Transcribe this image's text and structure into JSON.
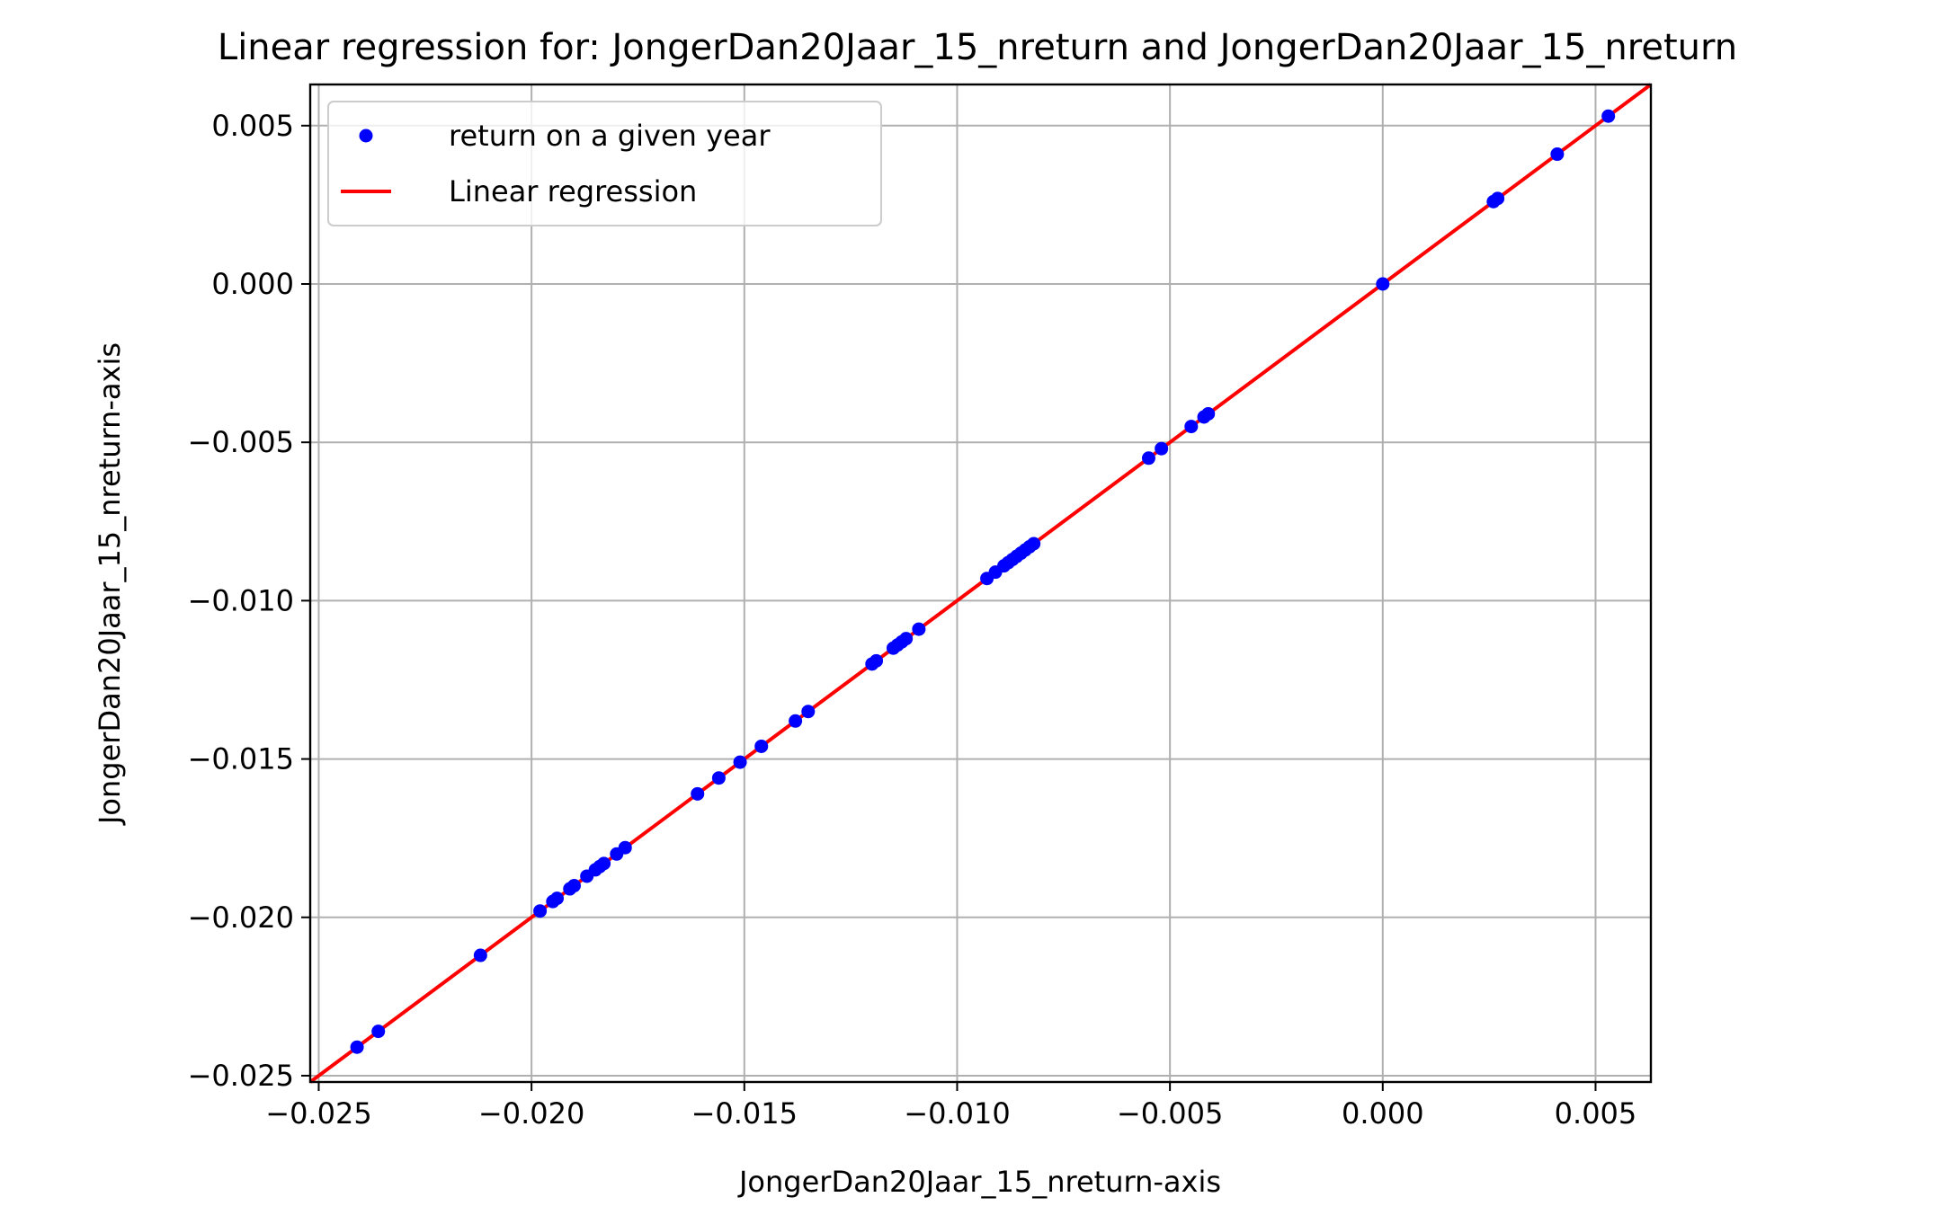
{
  "chart_data": {
    "type": "scatter",
    "title": "Linear regression for: JongerDan20Jaar_15_nreturn and JongerDan20Jaar_15_nreturn",
    "xlabel": "JongerDan20Jaar_15_nreturn-axis",
    "ylabel": "JongerDan20Jaar_15_nreturn-axis",
    "xlim": [
      -0.0252,
      0.0063
    ],
    "ylim": [
      -0.0252,
      0.0063
    ],
    "grid": true,
    "legend_position": "upper-left",
    "x_ticks": [
      {
        "value": -0.025,
        "label": "−0.025"
      },
      {
        "value": -0.02,
        "label": "−0.020"
      },
      {
        "value": -0.015,
        "label": "−0.015"
      },
      {
        "value": -0.01,
        "label": "−0.010"
      },
      {
        "value": -0.005,
        "label": "−0.005"
      },
      {
        "value": 0.0,
        "label": "0.000"
      },
      {
        "value": 0.005,
        "label": "0.005"
      }
    ],
    "y_ticks": [
      {
        "value": -0.025,
        "label": "−0.025"
      },
      {
        "value": -0.02,
        "label": "−0.020"
      },
      {
        "value": -0.015,
        "label": "−0.015"
      },
      {
        "value": -0.01,
        "label": "−0.010"
      },
      {
        "value": -0.005,
        "label": "−0.005"
      },
      {
        "value": 0.0,
        "label": "0.000"
      },
      {
        "value": 0.005,
        "label": "0.005"
      }
    ],
    "series": [
      {
        "name": "return on a given year",
        "kind": "scatter",
        "color": "#0000ff",
        "points": [
          [
            -0.0241,
            -0.0241
          ],
          [
            -0.0236,
            -0.0236
          ],
          [
            -0.0212,
            -0.0212
          ],
          [
            -0.0198,
            -0.0198
          ],
          [
            -0.0195,
            -0.0195
          ],
          [
            -0.0194,
            -0.0194
          ],
          [
            -0.0191,
            -0.0191
          ],
          [
            -0.019,
            -0.019
          ],
          [
            -0.0187,
            -0.0187
          ],
          [
            -0.0185,
            -0.0185
          ],
          [
            -0.0184,
            -0.0184
          ],
          [
            -0.0183,
            -0.0183
          ],
          [
            -0.018,
            -0.018
          ],
          [
            -0.0178,
            -0.0178
          ],
          [
            -0.0161,
            -0.0161
          ],
          [
            -0.0156,
            -0.0156
          ],
          [
            -0.0151,
            -0.0151
          ],
          [
            -0.0146,
            -0.0146
          ],
          [
            -0.0138,
            -0.0138
          ],
          [
            -0.0135,
            -0.0135
          ],
          [
            -0.012,
            -0.012
          ],
          [
            -0.0119,
            -0.0119
          ],
          [
            -0.0115,
            -0.0115
          ],
          [
            -0.0114,
            -0.0114
          ],
          [
            -0.0113,
            -0.0113
          ],
          [
            -0.0112,
            -0.0112
          ],
          [
            -0.0109,
            -0.0109
          ],
          [
            -0.0093,
            -0.0093
          ],
          [
            -0.0091,
            -0.0091
          ],
          [
            -0.0089,
            -0.0089
          ],
          [
            -0.0088,
            -0.0088
          ],
          [
            -0.0087,
            -0.0087
          ],
          [
            -0.0086,
            -0.0086
          ],
          [
            -0.0085,
            -0.0085
          ],
          [
            -0.0084,
            -0.0084
          ],
          [
            -0.0083,
            -0.0083
          ],
          [
            -0.0082,
            -0.0082
          ],
          [
            -0.0055,
            -0.0055
          ],
          [
            -0.0052,
            -0.0052
          ],
          [
            -0.0045,
            -0.0045
          ],
          [
            -0.0042,
            -0.0042
          ],
          [
            -0.0041,
            -0.0041
          ],
          [
            0.0,
            0.0
          ],
          [
            0.0026,
            0.0026
          ],
          [
            0.0027,
            0.0027
          ],
          [
            0.0041,
            0.0041
          ],
          [
            0.0053,
            0.0053
          ]
        ]
      },
      {
        "name": "Linear regression",
        "kind": "line",
        "color": "#ff0000",
        "slope": 1.0,
        "intercept": 0.0
      }
    ]
  }
}
